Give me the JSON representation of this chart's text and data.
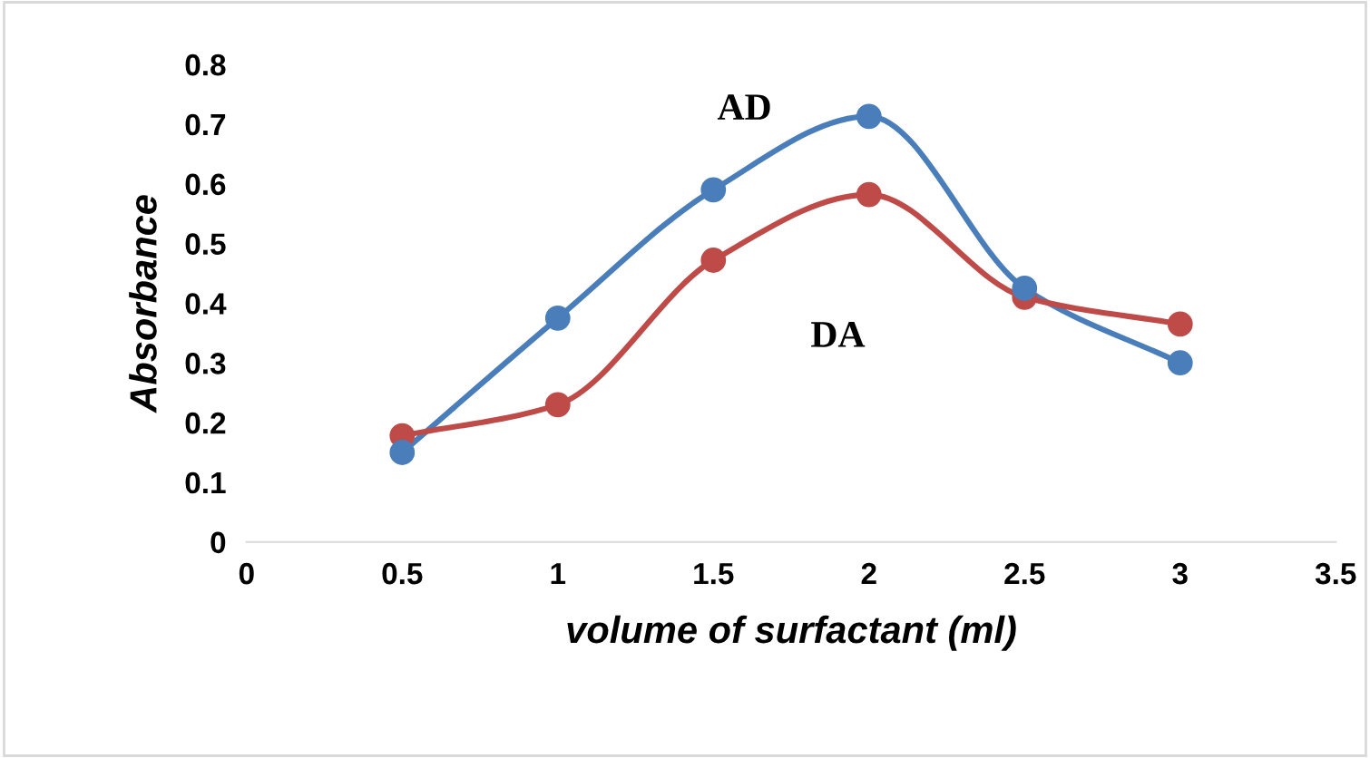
{
  "chart_data": {
    "type": "line",
    "xlabel": "volume of surfactant (ml)",
    "ylabel": "Absorbance",
    "x": [
      0.5,
      1,
      1.5,
      2,
      2.5,
      3
    ],
    "series": [
      {
        "name": "AD",
        "color": "#4a7ebb",
        "values": [
          0.15,
          0.375,
          0.59,
          0.713,
          0.425,
          0.3
        ]
      },
      {
        "name": "DA",
        "color": "#be4b48",
        "values": [
          0.178,
          0.23,
          0.472,
          0.582,
          0.41,
          0.365
        ]
      }
    ],
    "xlim": [
      0,
      3.5
    ],
    "xticks": [
      0,
      0.5,
      1,
      1.5,
      2,
      2.5,
      3,
      3.5
    ],
    "ylim": [
      0,
      0.8
    ],
    "yticks": [
      0,
      0.1,
      0.2,
      0.3,
      0.4,
      0.5,
      0.6,
      0.7,
      0.8
    ],
    "grid": false,
    "legend": false,
    "marker": "circle",
    "line_style": "solid"
  }
}
